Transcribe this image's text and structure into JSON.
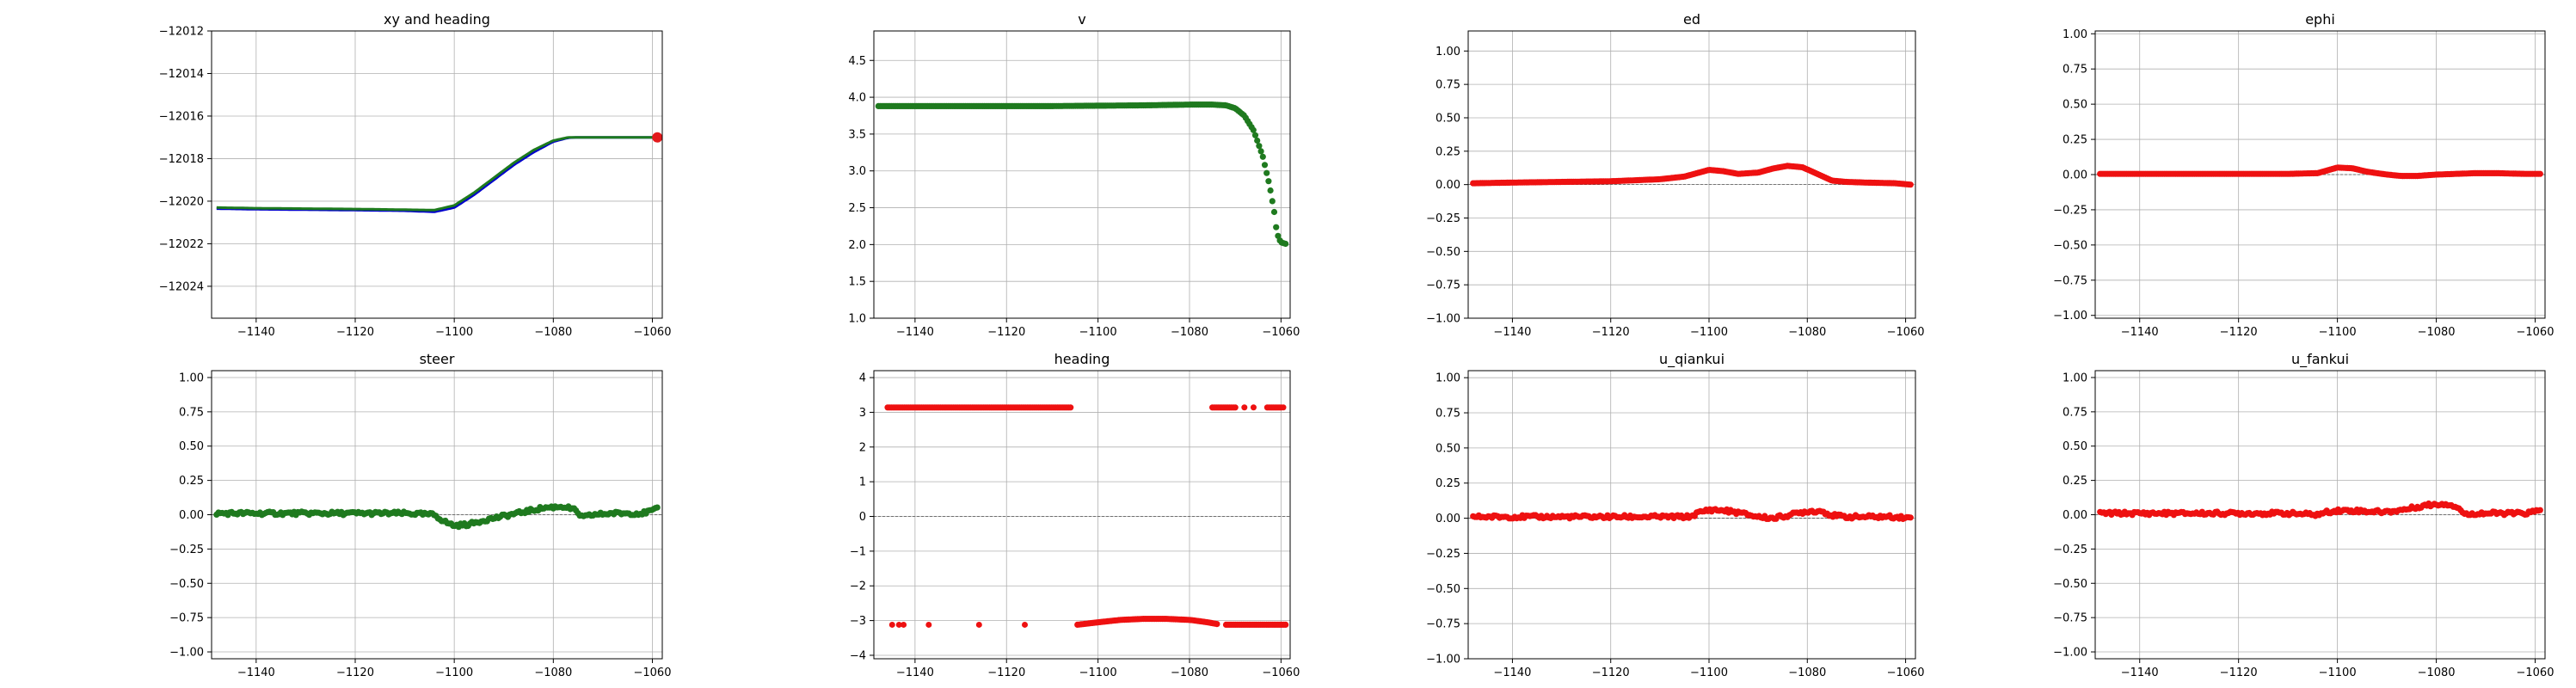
{
  "chart_data": [
    {
      "id": "xy",
      "type": "line",
      "title": "xy and heading",
      "xlim": [
        -1149,
        -1058
      ],
      "ylim": [
        -12025.5,
        -12012
      ],
      "xticks": [
        -1140,
        -1120,
        -1100,
        -1080,
        -1060
      ],
      "xtick_labels": [
        "−1140",
        "−1120",
        "−1100",
        "−1080",
        "−1060"
      ],
      "yticks": [
        -12024,
        -12022,
        -12020,
        -12018,
        -12016,
        -12014,
        -12012
      ],
      "ytick_labels": [
        "−12024",
        "−12022",
        "−12020",
        "−12018",
        "−12016",
        "−12014",
        "−12012"
      ],
      "grid": true,
      "series": [
        {
          "color": "#0000cc",
          "style": "line",
          "x": [
            -1148,
            -1140,
            -1130,
            -1120,
            -1110,
            -1104,
            -1100,
            -1096,
            -1092,
            -1088,
            -1084,
            -1080,
            -1077,
            -1075,
            -1070,
            -1065,
            -1060,
            -1059
          ],
          "y": [
            -12020.35,
            -12020.38,
            -12020.4,
            -12020.42,
            -12020.45,
            -12020.5,
            -12020.3,
            -12019.7,
            -12019.0,
            -12018.3,
            -12017.7,
            -12017.2,
            -12017.02,
            -12017.0,
            -12017.0,
            -12017.0,
            -12017.0,
            -12017.0
          ]
        },
        {
          "color": "#1e7b1e",
          "style": "line",
          "x": [
            -1148,
            -1140,
            -1130,
            -1120,
            -1110,
            -1104,
            -1100,
            -1096,
            -1092,
            -1088,
            -1084,
            -1080,
            -1077,
            -1075,
            -1070,
            -1065,
            -1060,
            -1059
          ],
          "y": [
            -12020.3,
            -12020.33,
            -12020.35,
            -12020.37,
            -12020.4,
            -12020.42,
            -12020.2,
            -12019.6,
            -12018.9,
            -12018.2,
            -12017.6,
            -12017.15,
            -12017.0,
            -12017.0,
            -12017.0,
            -12017.0,
            -12017.0,
            -12017.0
          ]
        },
        {
          "color": "#e31a1c",
          "style": "point",
          "x": [
            -1059
          ],
          "y": [
            -12017.0
          ]
        }
      ]
    },
    {
      "id": "v",
      "type": "scatter",
      "title": "v",
      "xlim": [
        -1149,
        -1058
      ],
      "ylim": [
        1.0,
        4.9
      ],
      "xticks": [
        -1140,
        -1120,
        -1100,
        -1080,
        -1060
      ],
      "xtick_labels": [
        "−1140",
        "−1120",
        "−1100",
        "−1080",
        "−1060"
      ],
      "yticks": [
        1.0,
        1.5,
        2.0,
        2.5,
        3.0,
        3.5,
        4.0,
        4.5
      ],
      "ytick_labels": [
        "1.0",
        "1.5",
        "2.0",
        "2.5",
        "3.0",
        "3.5",
        "4.0",
        "4.5"
      ],
      "grid": true,
      "series": [
        {
          "color": "#1f7a1f",
          "style": "dense",
          "x": [
            -1148,
            -1130,
            -1110,
            -1090,
            -1080,
            -1075,
            -1072,
            -1070,
            -1068,
            -1066,
            -1064,
            -1062.5,
            -1061.5,
            -1061,
            -1060.5,
            -1060,
            -1059
          ],
          "y": [
            3.88,
            3.88,
            3.88,
            3.89,
            3.9,
            3.9,
            3.89,
            3.85,
            3.75,
            3.55,
            3.2,
            2.8,
            2.45,
            2.2,
            2.08,
            2.03,
            2.01
          ]
        }
      ]
    },
    {
      "id": "ed",
      "type": "scatter",
      "title": "ed",
      "xlim": [
        -1149,
        -1058
      ],
      "ylim": [
        -1.0,
        1.15
      ],
      "xticks": [
        -1140,
        -1120,
        -1100,
        -1080,
        -1060
      ],
      "xtick_labels": [
        "−1140",
        "−1120",
        "−1100",
        "−1080",
        "−1060"
      ],
      "yticks": [
        -1.0,
        -0.75,
        -0.5,
        -0.25,
        0.0,
        0.25,
        0.5,
        0.75,
        1.0
      ],
      "ytick_labels": [
        "−1.00",
        "−0.75",
        "−0.50",
        "−0.25",
        "0.00",
        "0.25",
        "0.50",
        "0.75",
        "1.00"
      ],
      "grid": true,
      "zero_line": true,
      "series": [
        {
          "color": "#ee1111",
          "style": "dense",
          "x": [
            -1148,
            -1140,
            -1130,
            -1120,
            -1110,
            -1105,
            -1100,
            -1097,
            -1094,
            -1090,
            -1087,
            -1084,
            -1081,
            -1078,
            -1075,
            -1072,
            -1068,
            -1062,
            -1059
          ],
          "y": [
            0.01,
            0.015,
            0.02,
            0.025,
            0.04,
            0.06,
            0.11,
            0.1,
            0.08,
            0.09,
            0.12,
            0.14,
            0.13,
            0.08,
            0.03,
            0.02,
            0.015,
            0.01,
            0.0
          ]
        }
      ]
    },
    {
      "id": "ephi",
      "type": "scatter",
      "title": "ephi",
      "xlim": [
        -1149,
        -1058
      ],
      "ylim": [
        -1.02,
        1.02
      ],
      "xticks": [
        -1140,
        -1120,
        -1100,
        -1080,
        -1060
      ],
      "xtick_labels": [
        "−1140",
        "−1120",
        "−1100",
        "−1080",
        "−1060"
      ],
      "yticks": [
        -1.0,
        -0.75,
        -0.5,
        -0.25,
        0.0,
        0.25,
        0.5,
        0.75,
        1.0
      ],
      "ytick_labels": [
        "−1.00",
        "−0.75",
        "−0.50",
        "−0.25",
        "0.00",
        "0.25",
        "0.50",
        "0.75",
        "1.00"
      ],
      "grid": true,
      "zero_line": true,
      "series": [
        {
          "color": "#ee1111",
          "style": "dense",
          "x": [
            -1148,
            -1130,
            -1110,
            -1104,
            -1102,
            -1100,
            -1097,
            -1094,
            -1090,
            -1087,
            -1084,
            -1080,
            -1076,
            -1072,
            -1068,
            -1062,
            -1059
          ],
          "y": [
            0.005,
            0.005,
            0.005,
            0.01,
            0.03,
            0.05,
            0.045,
            0.02,
            0.0,
            -0.01,
            -0.01,
            0.0,
            0.005,
            0.01,
            0.01,
            0.005,
            0.005
          ]
        }
      ]
    },
    {
      "id": "steer",
      "type": "scatter",
      "title": "steer",
      "xlim": [
        -1149,
        -1058
      ],
      "ylim": [
        -1.05,
        1.05
      ],
      "xticks": [
        -1140,
        -1120,
        -1100,
        -1080,
        -1060
      ],
      "xtick_labels": [
        "−1140",
        "−1120",
        "−1100",
        "−1080",
        "−1060"
      ],
      "yticks": [
        -1.0,
        -0.75,
        -0.5,
        -0.25,
        0.0,
        0.25,
        0.5,
        0.75,
        1.0
      ],
      "ytick_labels": [
        "−1.00",
        "−0.75",
        "−0.50",
        "−0.25",
        "0.00",
        "0.25",
        "0.50",
        "0.75",
        "1.00"
      ],
      "grid": true,
      "zero_line": true,
      "series": [
        {
          "color": "#1f7a1f",
          "style": "noisy",
          "x": [
            -1148,
            -1130,
            -1110,
            -1104,
            -1102,
            -1100,
            -1097,
            -1094,
            -1090,
            -1086,
            -1082,
            -1078,
            -1076,
            -1074,
            -1072,
            -1068,
            -1062,
            -1059
          ],
          "y": [
            0.01,
            0.01,
            0.01,
            0.0,
            -0.05,
            -0.08,
            -0.07,
            -0.04,
            -0.01,
            0.02,
            0.05,
            0.06,
            0.04,
            -0.02,
            0.0,
            0.01,
            0.01,
            0.04
          ]
        }
      ]
    },
    {
      "id": "heading",
      "type": "scatter",
      "title": "heading",
      "xlim": [
        -1149,
        -1058
      ],
      "ylim": [
        -4.1,
        4.2
      ],
      "xticks": [
        -1140,
        -1120,
        -1100,
        -1080,
        -1060
      ],
      "xtick_labels": [
        "−1140",
        "−1120",
        "−1100",
        "−1080",
        "−1060"
      ],
      "yticks": [
        -4,
        -3,
        -2,
        -1,
        0,
        1,
        2,
        3,
        4
      ],
      "ytick_labels": [
        "−4",
        "−3",
        "−2",
        "−1",
        "0",
        "1",
        "2",
        "3",
        "4"
      ],
      "grid": true,
      "zero_line": true,
      "series": [
        {
          "color": "#ee1111",
          "style": "dense",
          "x": [
            -1146,
            -1130,
            -1115,
            -1106
          ],
          "y": [
            3.14,
            3.14,
            3.14,
            3.14
          ]
        },
        {
          "color": "#ee1111",
          "style": "dense",
          "x": [
            -1075,
            -1070
          ],
          "y": [
            3.14,
            3.14
          ]
        },
        {
          "color": "#ee1111",
          "style": "dense",
          "x": [
            -1063,
            -1060
          ],
          "y": [
            3.14,
            3.14
          ]
        },
        {
          "color": "#ee1111",
          "style": "points",
          "x": [
            -1068,
            -1066,
            -1059.5
          ],
          "y": [
            3.14,
            3.14,
            3.14
          ]
        },
        {
          "color": "#ee1111",
          "style": "points",
          "x": [
            -1145,
            -1143.5,
            -1142.5,
            -1137,
            -1126,
            -1116
          ],
          "y": [
            -3.12,
            -3.12,
            -3.12,
            -3.12,
            -3.12,
            -3.12
          ]
        },
        {
          "color": "#ee1111",
          "style": "dense",
          "x": [
            -1104.5,
            -1100,
            -1095,
            -1090,
            -1085,
            -1080,
            -1076,
            -1074
          ],
          "y": [
            -3.12,
            -3.05,
            -2.98,
            -2.95,
            -2.95,
            -2.98,
            -3.05,
            -3.1
          ]
        },
        {
          "color": "#ee1111",
          "style": "dense",
          "x": [
            -1072,
            -1065,
            -1060,
            -1059
          ],
          "y": [
            -3.12,
            -3.12,
            -3.12,
            -3.12
          ]
        }
      ]
    },
    {
      "id": "u_qiankui",
      "type": "scatter",
      "title": "u_qiankui",
      "xlim": [
        -1149,
        -1058
      ],
      "ylim": [
        -1.0,
        1.05
      ],
      "xticks": [
        -1140,
        -1120,
        -1100,
        -1080,
        -1060
      ],
      "xtick_labels": [
        "−1140",
        "−1120",
        "−1100",
        "−1080",
        "−1060"
      ],
      "yticks": [
        -1.0,
        -0.75,
        -0.5,
        -0.25,
        0.0,
        0.25,
        0.5,
        0.75,
        1.0
      ],
      "ytick_labels": [
        "−1.00",
        "−0.75",
        "−0.50",
        "−0.25",
        "0.00",
        "0.25",
        "0.50",
        "0.75",
        "1.00"
      ],
      "grid": true,
      "zero_line": true,
      "series": [
        {
          "color": "#ee1111",
          "style": "noisy",
          "x": [
            -1148,
            -1130,
            -1110,
            -1104,
            -1102,
            -1100,
            -1097,
            -1094,
            -1090,
            -1087,
            -1084,
            -1080,
            -1077,
            -1075,
            -1072,
            -1068,
            -1062,
            -1059
          ],
          "y": [
            0.01,
            0.01,
            0.01,
            0.01,
            0.04,
            0.06,
            0.055,
            0.04,
            0.01,
            0.0,
            0.02,
            0.05,
            0.05,
            0.02,
            0.01,
            0.01,
            0.01,
            0.0
          ]
        }
      ]
    },
    {
      "id": "u_fankui",
      "type": "scatter",
      "title": "u_fankui",
      "xlim": [
        -1149,
        -1058
      ],
      "ylim": [
        -1.05,
        1.05
      ],
      "xticks": [
        -1140,
        -1120,
        -1100,
        -1080,
        -1060
      ],
      "xtick_labels": [
        "−1140",
        "−1120",
        "−1100",
        "−1080",
        "−1060"
      ],
      "yticks": [
        -1.0,
        -0.75,
        -0.5,
        -0.25,
        0.0,
        0.25,
        0.5,
        0.75,
        1.0
      ],
      "ytick_labels": [
        "−1.00",
        "−0.75",
        "−0.50",
        "−0.25",
        "0.00",
        "0.25",
        "0.50",
        "0.75",
        "1.00"
      ],
      "grid": true,
      "zero_line": true,
      "series": [
        {
          "color": "#ee1111",
          "style": "noisy",
          "x": [
            -1148,
            -1130,
            -1110,
            -1104,
            -1102,
            -1100,
            -1097,
            -1094,
            -1090,
            -1086,
            -1082,
            -1078,
            -1076,
            -1074,
            -1072,
            -1068,
            -1062,
            -1059
          ],
          "y": [
            0.01,
            0.01,
            0.01,
            0.0,
            0.02,
            0.03,
            0.03,
            0.025,
            0.02,
            0.04,
            0.07,
            0.08,
            0.06,
            0.0,
            0.01,
            0.01,
            0.01,
            0.03
          ]
        }
      ]
    }
  ]
}
